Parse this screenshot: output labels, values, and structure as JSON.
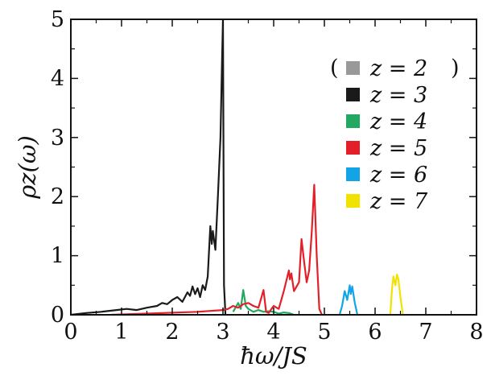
{
  "chart_data": {
    "type": "line",
    "xlabel": "ħω/JS",
    "ylabel": "ρz(ω)",
    "xlim": [
      0,
      8
    ],
    "ylim": [
      0,
      5
    ],
    "x_ticks": [
      "0",
      "1",
      "2",
      "3",
      "4",
      "5",
      "6",
      "7",
      "8"
    ],
    "y_ticks": [
      "0",
      "1",
      "2",
      "3",
      "4",
      "5"
    ],
    "grid": false,
    "legend_position": "top-right",
    "legend": [
      {
        "label": "z = 2",
        "parenthesized": true,
        "color": "#999999"
      },
      {
        "label": "z = 3",
        "parenthesized": false,
        "color": "#1a1a1a"
      },
      {
        "label": "z = 4",
        "parenthesized": false,
        "color": "#22a860"
      },
      {
        "label": "z = 5",
        "parenthesized": false,
        "color": "#e3202a"
      },
      {
        "label": "z = 6",
        "parenthesized": false,
        "color": "#12a4e6"
      },
      {
        "label": "z = 7",
        "parenthesized": false,
        "color": "#f2e200"
      }
    ],
    "series": [
      {
        "name": "z = 3",
        "color": "#1a1a1a",
        "x": [
          0,
          0.3,
          0.6,
          0.9,
          1.1,
          1.3,
          1.5,
          1.7,
          1.8,
          1.9,
          2.0,
          2.1,
          2.2,
          2.3,
          2.35,
          2.4,
          2.45,
          2.5,
          2.55,
          2.6,
          2.65,
          2.7,
          2.72,
          2.75,
          2.78,
          2.8,
          2.85,
          2.9,
          2.95,
          2.98,
          3.0,
          3.02,
          3.05
        ],
        "y": [
          0,
          0.03,
          0.05,
          0.08,
          0.1,
          0.08,
          0.12,
          0.15,
          0.2,
          0.18,
          0.25,
          0.3,
          0.22,
          0.38,
          0.32,
          0.48,
          0.35,
          0.45,
          0.3,
          0.5,
          0.42,
          0.65,
          1.0,
          1.5,
          1.2,
          1.42,
          1.1,
          2.0,
          3.0,
          4.2,
          5.0,
          0.5,
          0.0
        ]
      },
      {
        "name": "z = 4",
        "color": "#22a860",
        "x": [
          3.2,
          3.3,
          3.35,
          3.4,
          3.45,
          3.5,
          3.6,
          3.7,
          3.8,
          3.9,
          4.0,
          4.1,
          4.2,
          4.3,
          4.4
        ],
        "y": [
          0.05,
          0.2,
          0.1,
          0.42,
          0.15,
          0.1,
          0.05,
          0.08,
          0.05,
          0.06,
          0.05,
          0.02,
          0.04,
          0.03,
          0.0
        ]
      },
      {
        "name": "z = 5",
        "color": "#e3202a",
        "x": [
          0.8,
          1.5,
          2.5,
          3.0,
          3.1,
          3.2,
          3.3,
          3.4,
          3.5,
          3.6,
          3.7,
          3.8,
          3.85,
          3.9,
          4.0,
          4.1,
          4.2,
          4.3,
          4.32,
          4.35,
          4.4,
          4.5,
          4.55,
          4.6,
          4.65,
          4.7,
          4.75,
          4.8,
          4.85,
          4.9,
          4.95
        ],
        "y": [
          0.0,
          0.02,
          0.05,
          0.08,
          0.1,
          0.15,
          0.12,
          0.18,
          0.2,
          0.15,
          0.12,
          0.42,
          0.05,
          0.03,
          0.15,
          0.1,
          0.4,
          0.75,
          0.6,
          0.7,
          0.4,
          0.55,
          1.28,
          0.9,
          0.55,
          0.75,
          1.4,
          2.2,
          1.0,
          0.1,
          0.0
        ]
      },
      {
        "name": "z = 6",
        "color": "#12a4e6",
        "x": [
          5.3,
          5.35,
          5.4,
          5.45,
          5.5,
          5.52,
          5.55,
          5.6,
          5.65
        ],
        "y": [
          0.0,
          0.15,
          0.4,
          0.25,
          0.5,
          0.35,
          0.48,
          0.2,
          0.0
        ]
      },
      {
        "name": "z = 7",
        "color": "#f2e200",
        "x": [
          6.3,
          6.33,
          6.36,
          6.4,
          6.43,
          6.46,
          6.5,
          6.55
        ],
        "y": [
          0.0,
          0.4,
          0.65,
          0.5,
          0.68,
          0.6,
          0.3,
          0.0
        ]
      }
    ]
  }
}
